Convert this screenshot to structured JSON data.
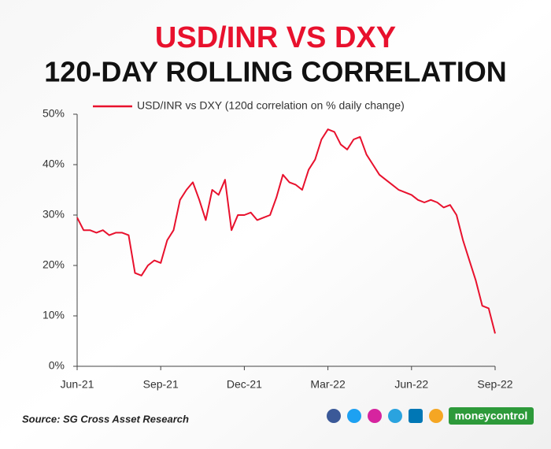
{
  "chart_data": {
    "type": "line",
    "title": "USD/INR VS DXY",
    "subtitle": "120-DAY ROLLING CORRELATION",
    "source": "Source: SG Cross Asset Research",
    "brand": "moneycontrol",
    "categories": [
      "Jun-21",
      null,
      null,
      null,
      null,
      null,
      null,
      null,
      null,
      null,
      null,
      null,
      null,
      "Sep-21",
      null,
      null,
      null,
      null,
      null,
      null,
      null,
      null,
      null,
      null,
      null,
      null,
      "Dec-21",
      null,
      null,
      null,
      null,
      null,
      null,
      null,
      null,
      null,
      null,
      null,
      null,
      "Mar-22",
      null,
      null,
      null,
      null,
      null,
      null,
      null,
      null,
      null,
      null,
      null,
      null,
      "Jun-22",
      null,
      null,
      null,
      null,
      null,
      null,
      null,
      null,
      null,
      null,
      null,
      null,
      "Sep-22"
    ],
    "series": [
      {
        "name": "USD/INR vs DXY (120d correlation on % daily change)",
        "color": "#e8112d",
        "values": [
          29.5,
          27,
          27,
          26.5,
          27,
          26,
          26.5,
          26.5,
          26,
          18.5,
          18,
          20,
          21,
          20.5,
          25,
          27,
          33,
          35,
          36.5,
          33,
          29,
          35,
          34,
          37,
          27,
          30,
          30,
          30.5,
          29,
          29.5,
          30,
          33.5,
          38,
          36.5,
          36,
          35,
          39,
          41,
          45,
          47,
          46.5,
          44,
          43,
          45,
          45.5,
          42,
          40,
          38,
          37,
          36,
          35,
          34.5,
          34,
          33,
          32.5,
          33,
          32.5,
          31.5,
          32,
          30,
          25,
          21,
          17,
          12,
          11.5,
          6.5
        ]
      }
    ],
    "ylim": [
      0,
      50
    ],
    "yticks": [
      {
        "value": 0,
        "label": "0%"
      },
      {
        "value": 10,
        "label": "10%"
      },
      {
        "value": 20,
        "label": "20%"
      },
      {
        "value": 30,
        "label": "30%"
      },
      {
        "value": 40,
        "label": "40%"
      },
      {
        "value": 50,
        "label": "50%"
      }
    ]
  }
}
